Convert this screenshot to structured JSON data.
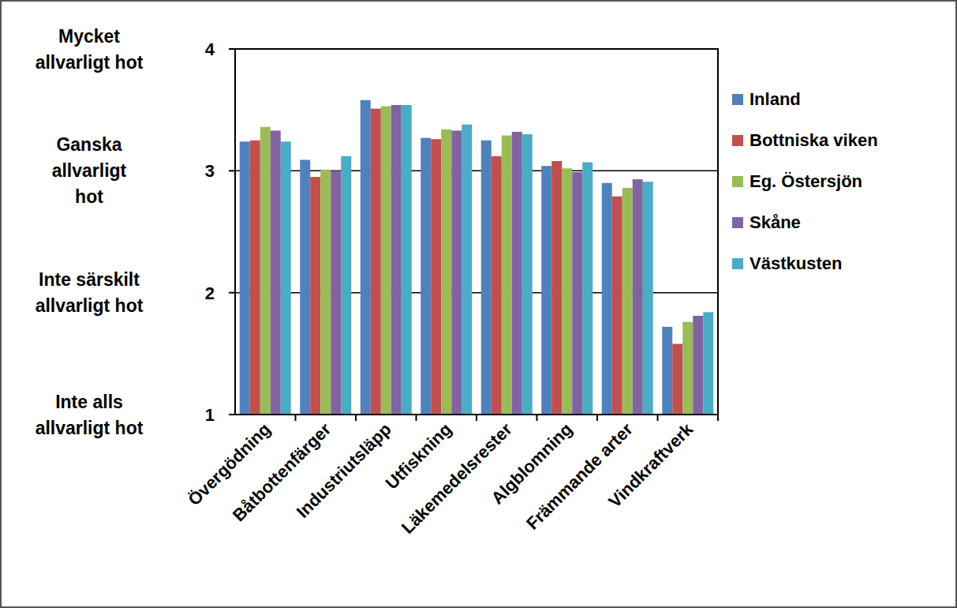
{
  "chart_data": {
    "type": "bar",
    "categories": [
      "Övergödning",
      "Båtbottenfärger",
      "Industriutsläpp",
      "Utfiskning",
      "Läkemedelsrester",
      "Algblomning",
      "Främmande arter",
      "Vindkraftverk"
    ],
    "series": [
      {
        "name": "Inland",
        "color": "#4f81bd",
        "values": [
          3.24,
          3.09,
          3.58,
          3.27,
          3.25,
          3.04,
          2.9,
          1.72
        ]
      },
      {
        "name": "Bottniska viken",
        "color": "#c0504d",
        "values": [
          3.25,
          2.95,
          3.51,
          3.26,
          3.12,
          3.08,
          2.79,
          1.58
        ]
      },
      {
        "name": "Eg. Östersjön",
        "color": "#9bbb59",
        "values": [
          3.36,
          3.01,
          3.53,
          3.34,
          3.29,
          3.02,
          2.86,
          1.76
        ]
      },
      {
        "name": "Skåne",
        "color": "#8064a2",
        "values": [
          3.33,
          3.0,
          3.54,
          3.33,
          3.32,
          2.99,
          2.93,
          1.81
        ]
      },
      {
        "name": "Västkusten",
        "color": "#4bacc6",
        "values": [
          3.24,
          3.12,
          3.54,
          3.38,
          3.3,
          3.07,
          2.91,
          1.84
        ]
      }
    ],
    "ylim": [
      1,
      4
    ],
    "yticks": [
      1,
      2,
      3,
      4
    ],
    "grid": true,
    "legend": "right",
    "annotations": [
      {
        "y": 4,
        "lines": [
          "Mycket",
          "allvarligt hot"
        ]
      },
      {
        "y": 3,
        "lines": [
          "Ganska",
          "allvarligt",
          "hot"
        ]
      },
      {
        "y": 2,
        "lines": [
          "Inte särskilt",
          "allvarligt hot"
        ]
      },
      {
        "y": 1,
        "lines": [
          "Inte alls",
          "allvarligt hot"
        ]
      }
    ]
  }
}
